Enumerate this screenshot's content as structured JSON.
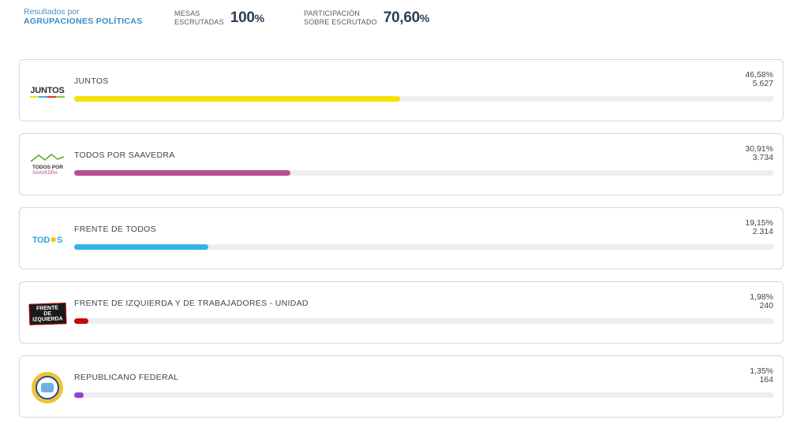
{
  "header": {
    "title_line1": "Resultados por",
    "title_line2": "AGRUPACIONES POLÍTICAS",
    "mesas_label_1": "MESAS",
    "mesas_label_2": "ESCRUTADAS",
    "mesas_value": "100",
    "mesas_unit": "%",
    "participacion_label_1": "PARTICIPACIÓN",
    "participacion_label_2": "SOBRE ESCRUTADO",
    "participacion_value": "70,60",
    "participacion_unit": "%"
  },
  "parties": [
    {
      "name": "JUNTOS",
      "percent": "46,58%",
      "votes": "5.627",
      "share": 46.58,
      "color": "#f5e100",
      "logo": "juntos-logo",
      "logo_text": "JUNTOS"
    },
    {
      "name": "TODOS POR SAAVEDRA",
      "percent": "30,91%",
      "votes": "3.734",
      "share": 30.91,
      "color": "#b84f8f",
      "logo": "todos-por-saavedra-logo",
      "logo_text": "TODOS POR SAAVEDRA"
    },
    {
      "name": "FRENTE DE TODOS",
      "percent": "19,15%",
      "votes": "2.314",
      "share": 19.15,
      "color": "#36b1e6",
      "logo": "frente-de-todos-logo",
      "logo_text": "TODOS"
    },
    {
      "name": "FRENTE DE IZQUIERDA Y DE TRABAJADORES - UNIDAD",
      "percent": "1,98%",
      "votes": "240",
      "share": 1.98,
      "color": "#c4080c",
      "logo": "frente-de-izquierda-logo",
      "logo_text": "FRENTE DE IZQUIERDA"
    },
    {
      "name": "REPUBLICANO FEDERAL",
      "percent": "1,35%",
      "votes": "164",
      "share": 1.35,
      "color": "#9a3fd0",
      "logo": "republicano-federal-logo",
      "logo_text": ""
    }
  ]
}
